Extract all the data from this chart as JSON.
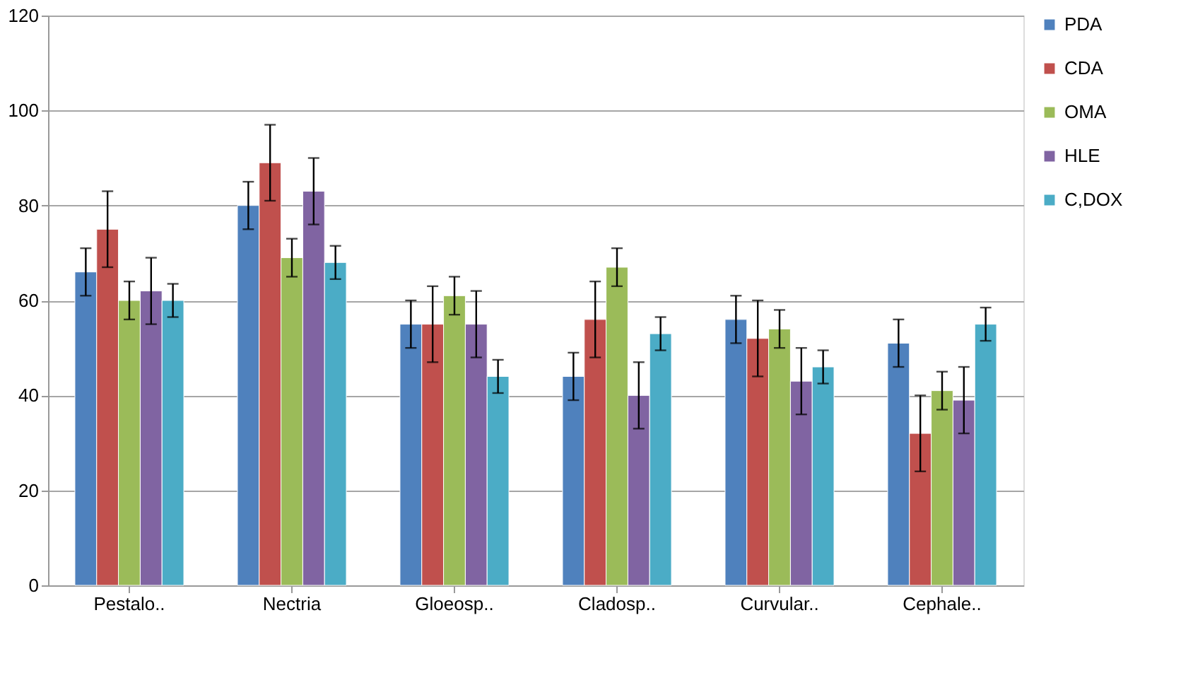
{
  "chart_data": {
    "type": "bar",
    "categories": [
      "Pestalo..",
      "Nectria",
      "Gloeosp..",
      "Cladosp..",
      "Curvular..",
      "Cephale.."
    ],
    "series": [
      {
        "name": "PDA",
        "color": "#4f81bd",
        "values": [
          66,
          80,
          55,
          44,
          56,
          51
        ],
        "errors": [
          5,
          5,
          5,
          5,
          5,
          5
        ]
      },
      {
        "name": "CDA",
        "color": "#c0504d",
        "values": [
          75,
          89,
          55,
          56,
          52,
          32
        ],
        "errors": [
          8,
          8,
          8,
          8,
          8,
          8
        ]
      },
      {
        "name": "OMA",
        "color": "#9bbb59",
        "values": [
          60,
          69,
          61,
          67,
          54,
          41
        ],
        "errors": [
          4,
          4,
          4,
          4,
          4,
          4
        ]
      },
      {
        "name": "HLE",
        "color": "#8064a2",
        "values": [
          62,
          83,
          55,
          40,
          43,
          39
        ],
        "errors": [
          7,
          7,
          7,
          7,
          7,
          7
        ]
      },
      {
        "name": "C,DOX",
        "color": "#4bacc6",
        "values": [
          60,
          68,
          44,
          53,
          46,
          55
        ],
        "errors": [
          3.5,
          3.5,
          3.5,
          3.5,
          3.5,
          3.5
        ]
      }
    ],
    "ylim": [
      0,
      120
    ],
    "yticks": [
      0,
      20,
      40,
      60,
      80,
      100,
      120
    ],
    "grid": "y",
    "legend": "right"
  }
}
